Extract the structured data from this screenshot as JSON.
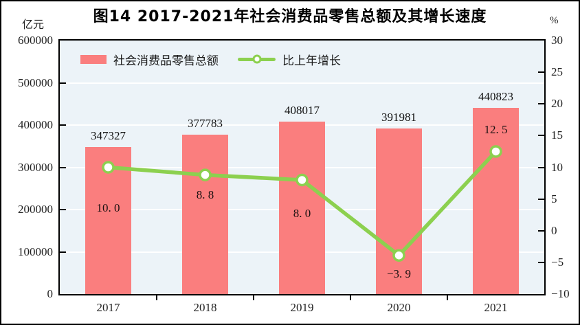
{
  "figure": {
    "title": "图14  2017-2021年社会消费品零售总额及其增长速度",
    "left_axis_unit": "亿元",
    "right_axis_unit": "%"
  },
  "legend": {
    "items": [
      {
        "label": "社会消费品零售总额",
        "marker": "bar-swatch",
        "color": "#fa7e7e"
      },
      {
        "label": "比上年增长",
        "marker": "line-with-circle",
        "color": "#8cd04f"
      }
    ]
  },
  "colors": {
    "bar": "#fa7e7e",
    "line": "#8cd04f",
    "marker_fill": "#ffffff",
    "plot_background": "#ecf3f8",
    "gridline": "#ffffff",
    "axis_border": "#000000",
    "text": "#1a1a1a"
  },
  "chart_data": {
    "type": "bar",
    "subtype": "bar-and-line-combo",
    "title": "图14  2017-2021年社会消费品零售总额及其增长速度",
    "categories": [
      "2017",
      "2018",
      "2019",
      "2020",
      "2021"
    ],
    "series": [
      {
        "name": "社会消费品零售总额",
        "type": "bar",
        "axis": "left",
        "values": [
          347327,
          377783,
          408017,
          391981,
          440823
        ],
        "data_labels": [
          "347327",
          "377783",
          "408017",
          "391981",
          "440823"
        ],
        "color": "#fa7e7e"
      },
      {
        "name": "比上年增长",
        "type": "line",
        "axis": "right",
        "values": [
          10.0,
          8.8,
          8.0,
          -3.9,
          12.5
        ],
        "data_labels": [
          "10. 0",
          "8. 8",
          "8. 0",
          "−3. 9",
          "12. 5"
        ],
        "label_dy": [
          60,
          30,
          50,
          28,
          -30
        ],
        "color": "#8cd04f"
      }
    ],
    "left_axis": {
      "unit": "亿元",
      "min": 0,
      "max": 600000,
      "step": 100000,
      "tick_labels": [
        "0",
        "100000",
        "200000",
        "300000",
        "400000",
        "500000",
        "600000"
      ]
    },
    "right_axis": {
      "unit": "%",
      "min": -10,
      "max": 30,
      "step": 5,
      "tick_labels": [
        "−10",
        "−5",
        "0",
        "5",
        "10",
        "15",
        "20",
        "25",
        "30"
      ]
    },
    "grid": {
      "horizontal": true,
      "at_left_axis_steps": true,
      "color": "#ffffff"
    },
    "legend_position": "top-left-inside-plot"
  }
}
